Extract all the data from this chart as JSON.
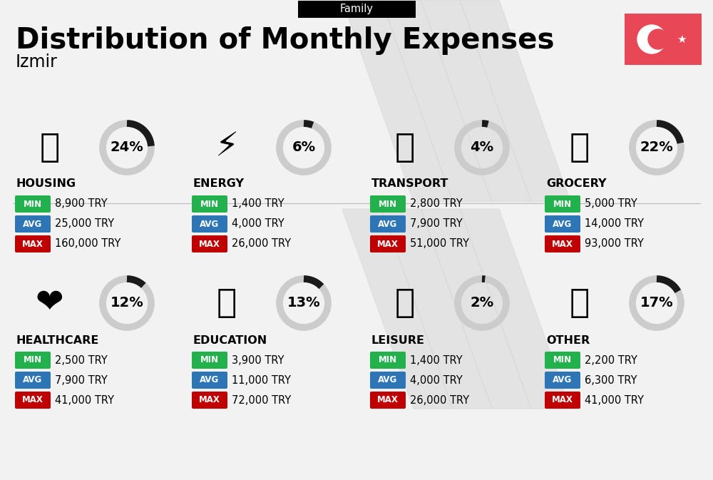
{
  "title": "Distribution of Monthly Expenses",
  "subtitle": "Family",
  "city": "Izmir",
  "bg_color": "#f2f2f2",
  "categories": [
    {
      "name": "HOUSING",
      "pct": 24,
      "min": "8,900 TRY",
      "avg": "25,000 TRY",
      "max": "160,000 TRY",
      "row": 0,
      "col": 0
    },
    {
      "name": "ENERGY",
      "pct": 6,
      "min": "1,400 TRY",
      "avg": "4,000 TRY",
      "max": "26,000 TRY",
      "row": 0,
      "col": 1
    },
    {
      "name": "TRANSPORT",
      "pct": 4,
      "min": "2,800 TRY",
      "avg": "7,900 TRY",
      "max": "51,000 TRY",
      "row": 0,
      "col": 2
    },
    {
      "name": "GROCERY",
      "pct": 22,
      "min": "5,000 TRY",
      "avg": "14,000 TRY",
      "max": "93,000 TRY",
      "row": 0,
      "col": 3
    },
    {
      "name": "HEALTHCARE",
      "pct": 12,
      "min": "2,500 TRY",
      "avg": "7,900 TRY",
      "max": "41,000 TRY",
      "row": 1,
      "col": 0
    },
    {
      "name": "EDUCATION",
      "pct": 13,
      "min": "3,900 TRY",
      "avg": "11,000 TRY",
      "max": "72,000 TRY",
      "row": 1,
      "col": 1
    },
    {
      "name": "LEISURE",
      "pct": 2,
      "min": "1,400 TRY",
      "avg": "4,000 TRY",
      "max": "26,000 TRY",
      "row": 1,
      "col": 2
    },
    {
      "name": "OTHER",
      "pct": 17,
      "min": "2,200 TRY",
      "avg": "6,300 TRY",
      "max": "41,000 TRY",
      "row": 1,
      "col": 3
    }
  ],
  "color_min": "#22b14c",
  "color_avg": "#2e75b6",
  "color_max": "#c00000",
  "color_arc_filled": "#1a1a1a",
  "color_arc_empty": "#cccccc",
  "flag_color": "#e84855",
  "stripe_color": "#d8d8d8",
  "icon_map": {
    "HOUSING": "🏙",
    "ENERGY": "⚡",
    "TRANSPORT": "🚌",
    "GROCERY": "🛒",
    "HEALTHCARE": "❤️",
    "EDUCATION": "🎓",
    "LEISURE": "🛍️",
    "OTHER": "💰"
  }
}
